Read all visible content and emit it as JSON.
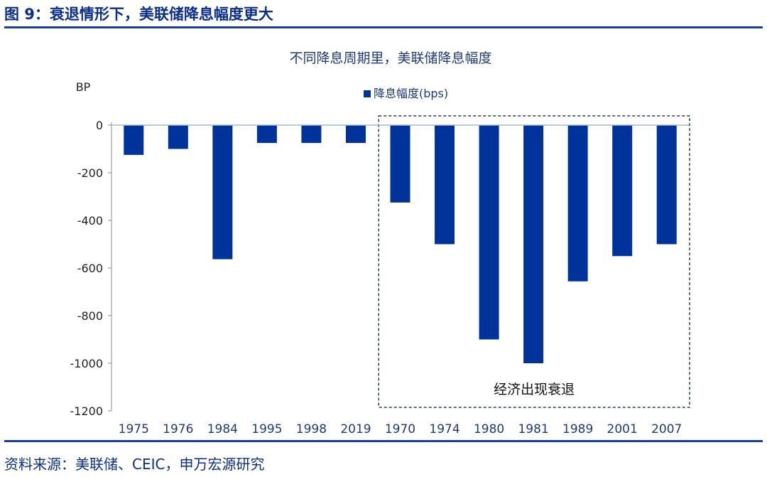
{
  "figure_title": "图 9：衰退情形下，美联储降息幅度更大",
  "source": "资料来源：美联储、CEIC，申万宏源研究",
  "colors": {
    "accent": "#0b2e8a",
    "bar": "#003399",
    "rule": "#1c3f9b",
    "axis_text": "#1f3a7a",
    "zero_line": "#9fb8d6",
    "box": "#2c3e50"
  },
  "chart_data": {
    "type": "bar",
    "title": "不同降息周期里，美联储降息幅度",
    "ylabel": "BP",
    "xlabel": "",
    "categories": [
      "1975",
      "1976",
      "1984",
      "1995",
      "1998",
      "2019",
      "1970",
      "1974",
      "1980",
      "1981",
      "1989",
      "2001",
      "2007"
    ],
    "series": [
      {
        "name": "降息幅度(bps)",
        "values": [
          -125,
          -100,
          -563,
          -75,
          -75,
          -75,
          -325,
          -500,
          -900,
          -1000,
          -656,
          -550,
          -500
        ]
      }
    ],
    "ylim": [
      -1200,
      0
    ],
    "yticks": [
      "0",
      "-200",
      "-400",
      "-600",
      "-800",
      "-1000",
      "-1200"
    ],
    "grid": false,
    "legend": "top-center",
    "annotation": {
      "text": "经济出现衰退",
      "category_range": [
        "1970",
        "2007"
      ]
    }
  }
}
